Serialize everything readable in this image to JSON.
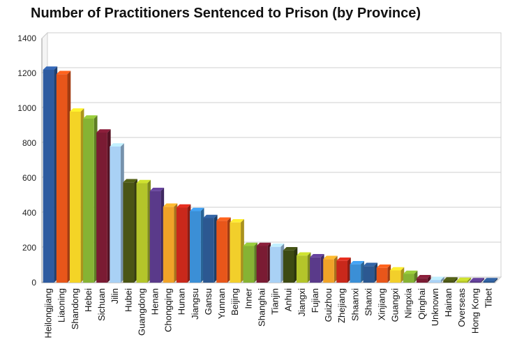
{
  "chart_data": {
    "type": "bar",
    "title": "Number of Practitioners Sentenced to Prison (by Province)",
    "categories": [
      "Heilongjiang",
      "Liaoning",
      "Shandong",
      "Hebei",
      "Sichuan",
      "Jilin",
      "Hubei",
      "Guangdong",
      "Henan",
      "Chongqing",
      "Hunan",
      "Jiangsu",
      "Gansu",
      "Yunnan",
      "Beijing",
      "Inner",
      "Shanghai",
      "Tianjin",
      "Anhui",
      "Jiangxi",
      "Fujian",
      "Guizhou",
      "Zhejiang",
      "Shaanxi",
      "Shanxi",
      "Xinjiang",
      "Guangxi",
      "Ningxia",
      "Qinghai",
      "Unknown",
      "Hainan",
      "Overseas",
      "Hong Kong",
      "Tibet"
    ],
    "values": [
      1220,
      1195,
      980,
      940,
      860,
      780,
      575,
      570,
      525,
      435,
      430,
      410,
      370,
      355,
      345,
      210,
      210,
      205,
      185,
      155,
      145,
      135,
      125,
      105,
      95,
      85,
      70,
      50,
      25,
      15,
      12,
      10,
      8,
      8
    ],
    "colors": [
      "#2e5ba0",
      "#e8561a",
      "#f4d426",
      "#86b334",
      "#7a1b33",
      "#a9d1f5",
      "#4a5514",
      "#b4c52a",
      "#5a3a8a",
      "#f0a328",
      "#c9281b",
      "#3b8fd6",
      "#2c5891",
      "#e8561a",
      "#f2cf2b",
      "#86b334",
      "#7a1b33",
      "#a9d1f5",
      "#3d4a12",
      "#b4c52a",
      "#5a3a8a",
      "#f0a328",
      "#c9281b",
      "#3b8fd6",
      "#2c5891",
      "#e8561a",
      "#f2cf2b",
      "#86b334",
      "#7a1b33",
      "#a9d1f5",
      "#4a5514",
      "#b4c52a",
      "#5a3a8a",
      "#2c5891"
    ],
    "ylim": [
      0,
      1400
    ],
    "yticks": [
      "0",
      "200",
      "400",
      "600",
      "800",
      "1000",
      "1200",
      "1400"
    ],
    "grid": true,
    "legend": "none"
  }
}
